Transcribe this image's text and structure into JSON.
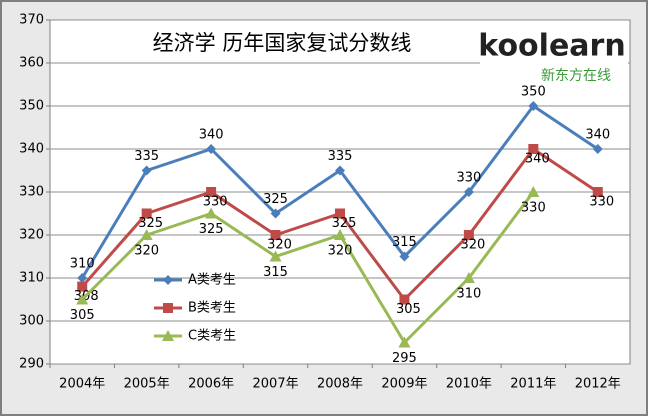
{
  "chart_data": {
    "type": "line",
    "title": "经济学 历年国家复试分数线",
    "logo": {
      "brand": "koolearn",
      "tagline": "新东方在线"
    },
    "categories": [
      "2004年",
      "2005年",
      "2006年",
      "2007年",
      "2008年",
      "2009年",
      "2010年",
      "2011年",
      "2012年"
    ],
    "series": [
      {
        "name": "A类考生",
        "color": "#4a7ebb",
        "marker": "diamond",
        "values": [
          310,
          335,
          340,
          325,
          335,
          315,
          330,
          350,
          340
        ]
      },
      {
        "name": "B类考生",
        "color": "#be4b48",
        "marker": "square",
        "values": [
          308,
          325,
          330,
          320,
          325,
          305,
          320,
          340,
          330
        ]
      },
      {
        "name": "C类考生",
        "color": "#98b954",
        "marker": "triangle",
        "values": [
          305,
          320,
          325,
          315,
          320,
          295,
          310,
          330,
          null
        ]
      }
    ],
    "ylim": [
      290,
      370
    ],
    "yticks": [
      290,
      300,
      310,
      320,
      330,
      340,
      350,
      360,
      370
    ],
    "grid": true,
    "legend": "lower left"
  }
}
